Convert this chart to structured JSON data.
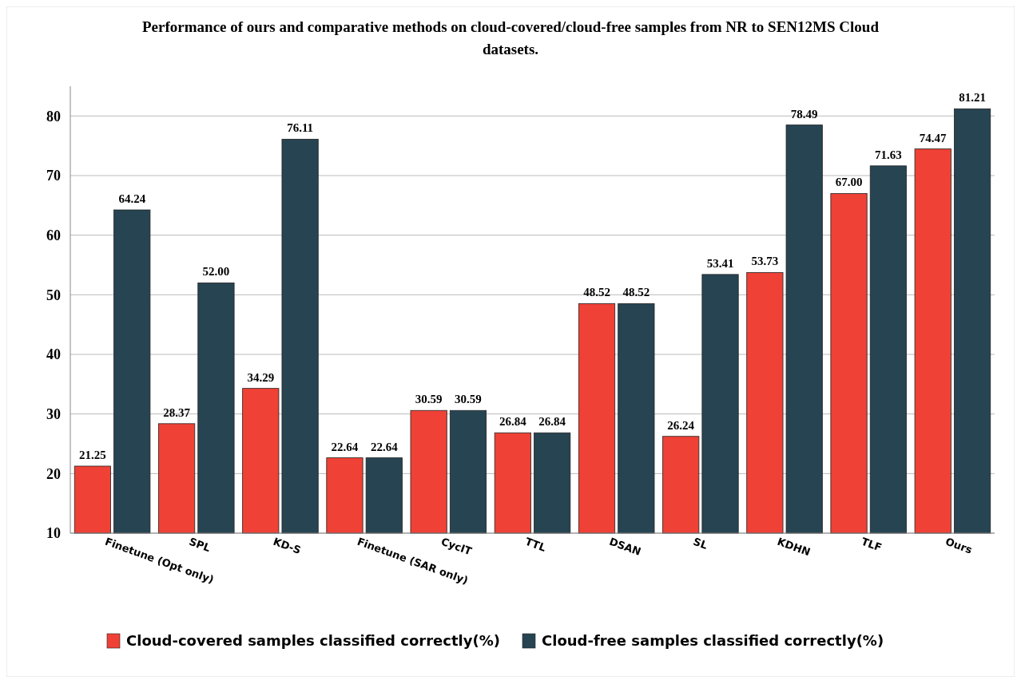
{
  "chart_data": {
    "type": "bar",
    "title": "Performance of ours and comparative methods on cloud-covered/cloud-free samples from NR to SEN12MS Cloud datasets.",
    "categories": [
      "Finetune (Opt only)",
      "SPL",
      "KD-S",
      "Finetune (SAR only)",
      "CycIT",
      "TTL",
      "DSAN",
      "SL",
      "KDHN",
      "TLF",
      "Ours"
    ],
    "series": [
      {
        "name": "Cloud-covered samples classified correctly(%)",
        "color": "#ef4136",
        "values": [
          21.25,
          28.37,
          34.29,
          22.64,
          30.59,
          26.84,
          48.52,
          26.24,
          53.73,
          67.0,
          74.47
        ],
        "value_labels": [
          "21.25",
          "28.37",
          "34.29",
          "22.64",
          "30.59",
          "26.84",
          "48.52",
          "26.24",
          "53.73",
          "67.00",
          "74.47"
        ]
      },
      {
        "name": "Cloud-free samples classified correctly(%)",
        "color": "#264452",
        "values": [
          64.24,
          52.0,
          76.11,
          22.64,
          30.59,
          26.84,
          48.52,
          53.41,
          78.49,
          71.63,
          81.21
        ],
        "value_labels": [
          "64.24",
          "52.00",
          "76.11",
          "22.64",
          "30.59",
          "26.84",
          "48.52",
          "53.41",
          "78.49",
          "71.63",
          "81.21"
        ]
      }
    ],
    "ylim": [
      10,
      85
    ],
    "yticks": [
      10,
      20,
      30,
      40,
      50,
      60,
      70,
      80
    ],
    "grid": "y",
    "legend": "bottom"
  }
}
